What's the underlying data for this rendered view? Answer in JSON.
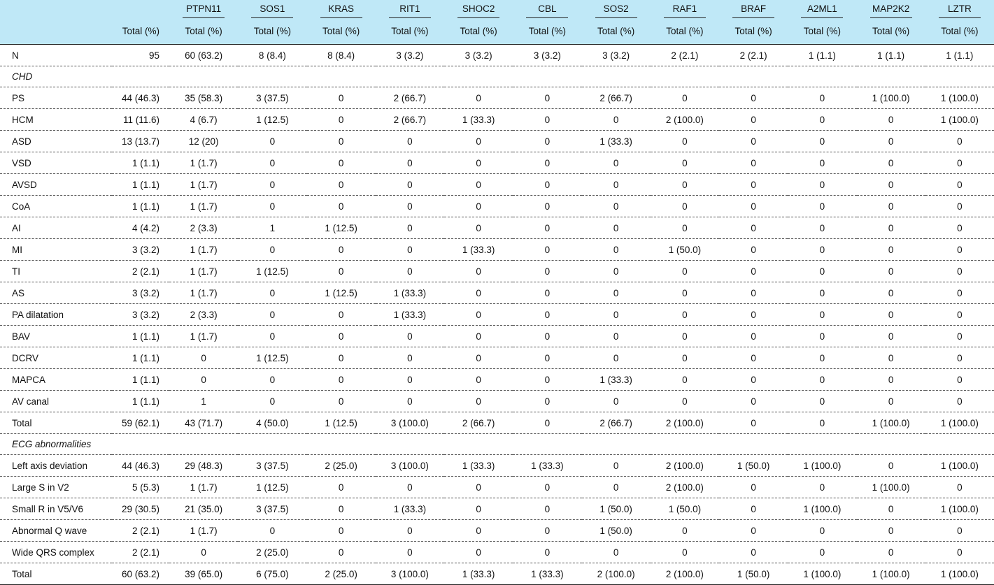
{
  "columns": {
    "first_total": "Total (%)",
    "sub_label": "Total (%)",
    "genes": [
      "PTPN11",
      "SOS1",
      "KRAS",
      "RIT1",
      "SHOC2",
      "CBL",
      "SOS2",
      "RAF1",
      "BRAF",
      "A2ML1",
      "MAP2K2",
      "LZTR"
    ]
  },
  "rows": [
    {
      "type": "data",
      "label": "N",
      "cells": [
        "95",
        "60 (63.2)",
        "8 (8.4)",
        "8 (8.4)",
        "3 (3.2)",
        "3 (3.2)",
        "3 (3.2)",
        "3 (3.2)",
        "2 (2.1)",
        "2 (2.1)",
        "1 (1.1)",
        "1 (1.1)",
        "1 (1.1)"
      ]
    },
    {
      "type": "section",
      "label": "CHD"
    },
    {
      "type": "data",
      "label": "PS",
      "cells": [
        "44 (46.3)",
        "35 (58.3)",
        "3 (37.5)",
        "0",
        "2 (66.7)",
        "0",
        "0",
        "2 (66.7)",
        "0",
        "0",
        "0",
        "1 (100.0)",
        "1 (100.0)"
      ]
    },
    {
      "type": "data",
      "label": "HCM",
      "cells": [
        "11 (11.6)",
        "4 (6.7)",
        "1 (12.5)",
        "0",
        "2 (66.7)",
        "1 (33.3)",
        "0",
        "0",
        "2 (100.0)",
        "0",
        "0",
        "0",
        "1 (100.0)"
      ]
    },
    {
      "type": "data",
      "label": "ASD",
      "cells": [
        "13 (13.7)",
        "12 (20)",
        "0",
        "0",
        "0",
        "0",
        "0",
        "1 (33.3)",
        "0",
        "0",
        "0",
        "0",
        "0"
      ]
    },
    {
      "type": "data",
      "label": "VSD",
      "cells": [
        "1 (1.1)",
        "1 (1.7)",
        "0",
        "0",
        "0",
        "0",
        "0",
        "0",
        "0",
        "0",
        "0",
        "0",
        "0"
      ]
    },
    {
      "type": "data",
      "label": "AVSD",
      "cells": [
        "1 (1.1)",
        "1 (1.7)",
        "0",
        "0",
        "0",
        "0",
        "0",
        "0",
        "0",
        "0",
        "0",
        "0",
        "0"
      ]
    },
    {
      "type": "data",
      "label": "CoA",
      "cells": [
        "1 (1.1)",
        "1 (1.7)",
        "0",
        "0",
        "0",
        "0",
        "0",
        "0",
        "0",
        "0",
        "0",
        "0",
        "0"
      ]
    },
    {
      "type": "data",
      "label": "AI",
      "cells": [
        "4 (4.2)",
        "2 (3.3)",
        "1",
        "1 (12.5)",
        "0",
        "0",
        "0",
        "0",
        "0",
        "0",
        "0",
        "0",
        "0"
      ]
    },
    {
      "type": "data",
      "label": "MI",
      "cells": [
        "3 (3.2)",
        "1 (1.7)",
        "0",
        "0",
        "0",
        "1 (33.3)",
        "0",
        "0",
        "1 (50.0)",
        "0",
        "0",
        "0",
        "0"
      ]
    },
    {
      "type": "data",
      "label": "TI",
      "cells": [
        "2 (2.1)",
        "1 (1.7)",
        "1 (12.5)",
        "0",
        "0",
        "0",
        "0",
        "0",
        "0",
        "0",
        "0",
        "0",
        "0"
      ]
    },
    {
      "type": "data",
      "label": "AS",
      "cells": [
        "3 (3.2)",
        "1 (1.7)",
        "0",
        "1 (12.5)",
        "1 (33.3)",
        "0",
        "0",
        "0",
        "0",
        "0",
        "0",
        "0",
        "0"
      ]
    },
    {
      "type": "data",
      "label": "PA dilatation",
      "cells": [
        "3 (3.2)",
        "2 (3.3)",
        "0",
        "0",
        "1 (33.3)",
        "0",
        "0",
        "0",
        "0",
        "0",
        "0",
        "0",
        "0"
      ]
    },
    {
      "type": "data",
      "label": "BAV",
      "cells": [
        "1 (1.1)",
        "1 (1.7)",
        "0",
        "0",
        "0",
        "0",
        "0",
        "0",
        "0",
        "0",
        "0",
        "0",
        "0"
      ]
    },
    {
      "type": "data",
      "label": "DCRV",
      "cells": [
        "1 (1.1)",
        "0",
        "1 (12.5)",
        "0",
        "0",
        "0",
        "0",
        "0",
        "0",
        "0",
        "0",
        "0",
        "0"
      ]
    },
    {
      "type": "data",
      "label": "MAPCA",
      "cells": [
        "1 (1.1)",
        "0",
        "0",
        "0",
        "0",
        "0",
        "0",
        "1 (33.3)",
        "0",
        "0",
        "0",
        "0",
        "0"
      ]
    },
    {
      "type": "data",
      "label": "AV canal",
      "cells": [
        "1 (1.1)",
        "1",
        "0",
        "0",
        "0",
        "0",
        "0",
        "0",
        "0",
        "0",
        "0",
        "0",
        "0"
      ]
    },
    {
      "type": "data",
      "label": "Total",
      "cells": [
        "59 (62.1)",
        "43 (71.7)",
        "4 (50.0)",
        "1 (12.5)",
        "3 (100.0)",
        "2 (66.7)",
        "0",
        "2 (66.7)",
        "2 (100.0)",
        "0",
        "0",
        "1 (100.0)",
        "1 (100.0)"
      ]
    },
    {
      "type": "section",
      "label": "ECG abnormalities"
    },
    {
      "type": "data",
      "label": "Left axis deviation",
      "cells": [
        "44 (46.3)",
        "29 (48.3)",
        "3 (37.5)",
        "2 (25.0)",
        "3 (100.0)",
        "1 (33.3)",
        "1 (33.3)",
        "0",
        "2 (100.0)",
        "1 (50.0)",
        "1 (100.0)",
        "0",
        "1 (100.0)"
      ]
    },
    {
      "type": "data",
      "label": "Large S in V2",
      "cells": [
        "5 (5.3)",
        "1 (1.7)",
        "1 (12.5)",
        "0",
        "0",
        "0",
        "0",
        "0",
        "2 (100.0)",
        "0",
        "0",
        "1 (100.0)",
        "0"
      ]
    },
    {
      "type": "data",
      "label": "Small R in V5/V6",
      "cells": [
        "29 (30.5)",
        "21 (35.0)",
        "3 (37.5)",
        "0",
        "1 (33.3)",
        "0",
        "0",
        "1 (50.0)",
        "1 (50.0)",
        "0",
        "1 (100.0)",
        "0",
        "1 (100.0)"
      ]
    },
    {
      "type": "data",
      "label": "Abnormal Q wave",
      "cells": [
        "2 (2.1)",
        "1 (1.7)",
        "0",
        "0",
        "0",
        "0",
        "0",
        "1 (50.0)",
        "0",
        "0",
        "0",
        "0",
        "0"
      ]
    },
    {
      "type": "data",
      "label": "Wide QRS complex",
      "cells": [
        "2 (2.1)",
        "0",
        "2 (25.0)",
        "0",
        "0",
        "0",
        "0",
        "0",
        "0",
        "0",
        "0",
        "0",
        "0"
      ]
    },
    {
      "type": "data",
      "label": "Total",
      "cells": [
        "60 (63.2)",
        "39 (65.0)",
        "6 (75.0)",
        "2 (25.0)",
        "3 (100.0)",
        "1 (33.3)",
        "1 (33.3)",
        "2 (100.0)",
        "2 (100.0)",
        "1 (50.0)",
        "1 (100.0)",
        "1 (100.0)",
        "1 (100.0)"
      ]
    }
  ]
}
